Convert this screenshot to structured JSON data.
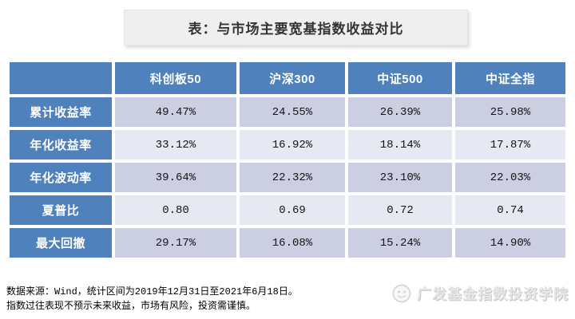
{
  "title_box": {
    "text": "表：与市场主要宽基指数收益对比"
  },
  "table": {
    "corner_label": "",
    "columns": [
      "科创板50",
      "沪深300",
      "中证500",
      "中证全指"
    ],
    "rows": [
      {
        "label": "累计收益率",
        "values": [
          "49.47%",
          "24.55%",
          "26.39%",
          "25.98%"
        ]
      },
      {
        "label": "年化收益率",
        "values": [
          "33.12%",
          "16.92%",
          "18.14%",
          "17.87%"
        ]
      },
      {
        "label": "年化波动率",
        "values": [
          "39.64%",
          "22.32%",
          "23.10%",
          "22.03%"
        ]
      },
      {
        "label": "夏普比",
        "values": [
          "0.80",
          "0.69",
          "0.72",
          "0.74"
        ]
      },
      {
        "label": "最大回撤",
        "values": [
          "29.17%",
          "16.08%",
          "15.24%",
          "14.90%"
        ]
      }
    ]
  },
  "footer": {
    "line1": "数据来源：Wind，统计区间为2019年12月31日至2021年6月18日。",
    "line2": "指数过往表现不预示未来收益，市场有风险，投资需谨慎。"
  },
  "watermark": {
    "icon": "brand-logo-icon",
    "text": "广发基金指数投资学院"
  },
  "colors": {
    "header_blue": "#4F81BD",
    "row_band_dark": "#CBCFE1",
    "row_band_light": "#E7E9F2",
    "title_bg": "#EFEFEF"
  },
  "chart_data": {
    "type": "table",
    "title": "表：与市场主要宽基指数收益对比",
    "columns": [
      "",
      "科创板50",
      "沪深300",
      "中证500",
      "中证全指"
    ],
    "rows": [
      [
        "累计收益率",
        "49.47%",
        "24.55%",
        "26.39%",
        "25.98%"
      ],
      [
        "年化收益率",
        "33.12%",
        "16.92%",
        "18.14%",
        "17.87%"
      ],
      [
        "年化波动率",
        "39.64%",
        "22.32%",
        "23.10%",
        "22.03%"
      ],
      [
        "夏普比",
        "0.80",
        "0.69",
        "0.72",
        "0.74"
      ],
      [
        "最大回撤",
        "29.17%",
        "16.08%",
        "15.24%",
        "14.90%"
      ]
    ]
  }
}
